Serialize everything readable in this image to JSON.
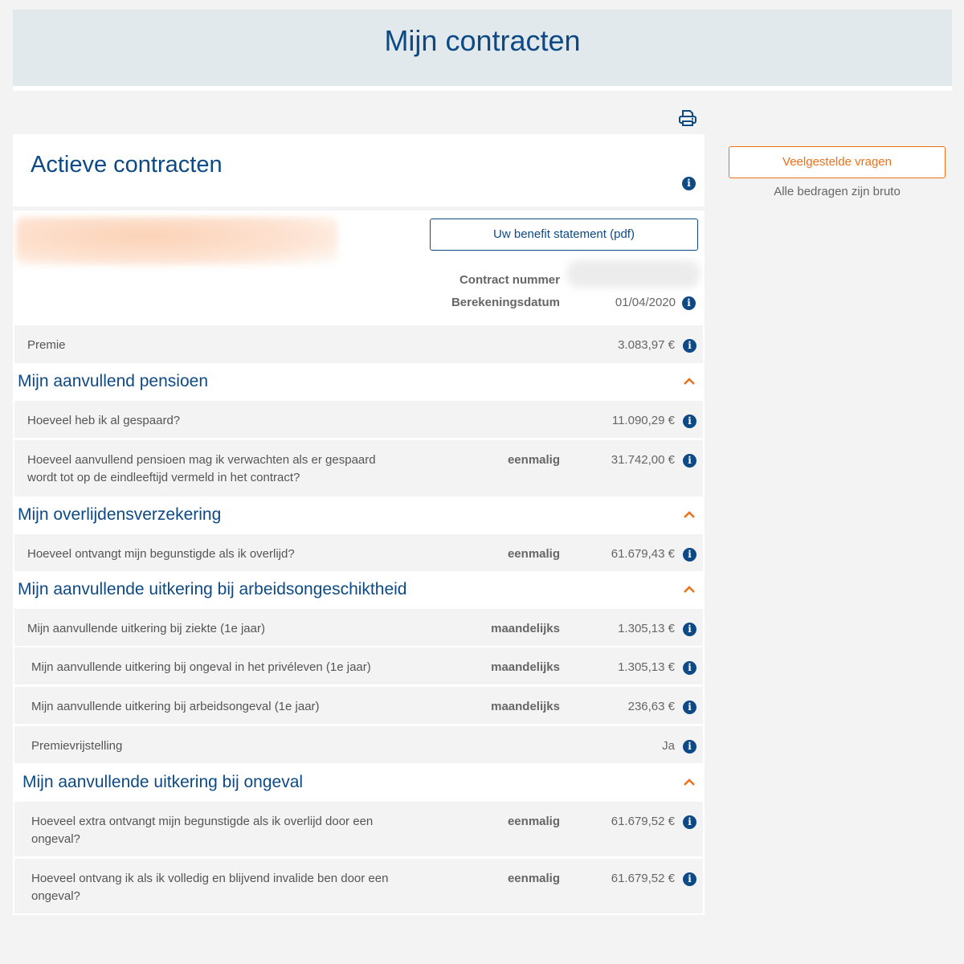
{
  "page": {
    "title": "Mijn contracten",
    "print_icon": "printer-icon"
  },
  "active": {
    "title": "Actieve contracten",
    "pdf_button": "Uw benefit statement (pdf)",
    "contract_label": "Contract nummer",
    "date_label": "Berekeningsdatum",
    "date_value": "01/04/2020"
  },
  "premie": {
    "label": "Premie",
    "value": "3.083,97 €"
  },
  "sidebar": {
    "faq": "Veelgestelde vragen",
    "note": "Alle bedragen zijn bruto"
  },
  "colors": {
    "brand": "#0d4a85",
    "accent": "#f07019"
  },
  "sections": [
    {
      "title": "Mijn aanvullend pensioen",
      "rows": [
        {
          "label": "Hoeveel heb ik al gespaard?",
          "freq": "",
          "value": "11.090,29 €"
        },
        {
          "label": "Hoeveel aanvullend pensioen mag ik verwachten als er gespaard wordt tot op de eindleeftijd vermeld in het contract?",
          "freq": "eenmalig",
          "value": "31.742,00 €"
        }
      ]
    },
    {
      "title": "Mijn overlijdensverzekering",
      "rows": [
        {
          "label": "Hoeveel ontvangt mijn begunstigde als ik overlijd?",
          "freq": "eenmalig",
          "value": "61.679,43 €"
        }
      ]
    },
    {
      "title": "Mijn aanvullende uitkering bij arbeidsongeschiktheid",
      "rows": [
        {
          "label": "Mijn aanvullende uitkering bij ziekte (1e jaar)",
          "freq": "maandelijks",
          "value": "1.305,13 €"
        },
        {
          "label": "Mijn aanvullende uitkering bij ongeval in het privéleven (1e jaar)",
          "freq": "maandelijks",
          "value": "1.305,13 €"
        },
        {
          "label": "Mijn aanvullende uitkering bij arbeidsongeval (1e jaar)",
          "freq": "maandelijks",
          "value": "236,63 €"
        },
        {
          "label": "Premievrijstelling",
          "freq": "",
          "value": "Ja"
        }
      ]
    },
    {
      "title": "Mijn aanvullende uitkering bij ongeval",
      "rows": [
        {
          "label": "Hoeveel extra ontvangt mijn begunstigde als ik overlijd door een ongeval?",
          "freq": "eenmalig",
          "value": "61.679,52 €"
        },
        {
          "label": "Hoeveel ontvang ik als ik volledig en blijvend invalide ben door een ongeval?",
          "freq": "eenmalig",
          "value": "61.679,52 €"
        }
      ]
    }
  ]
}
